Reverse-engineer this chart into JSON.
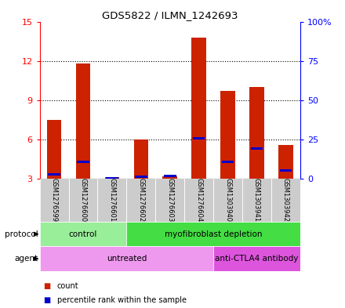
{
  "title": "GDS5822 / ILMN_1242693",
  "samples": [
    "GSM1276599",
    "GSM1276600",
    "GSM1276601",
    "GSM1276602",
    "GSM1276603",
    "GSM1276604",
    "GSM1303940",
    "GSM1303941",
    "GSM1303942"
  ],
  "count_values": [
    7.5,
    11.8,
    3.1,
    6.0,
    3.2,
    13.8,
    9.7,
    10.0,
    5.6
  ],
  "percentile_values": [
    3.3,
    4.3,
    3.05,
    3.15,
    3.2,
    6.1,
    4.3,
    5.3,
    3.6
  ],
  "bar_color": "#cc2200",
  "percentile_color": "#0000cc",
  "ylim_left": [
    3,
    15
  ],
  "ylim_right": [
    0,
    100
  ],
  "yticks_left": [
    3,
    6,
    9,
    12,
    15
  ],
  "yticks_right": [
    0,
    25,
    50,
    75,
    100
  ],
  "ytick_labels_right": [
    "0",
    "25",
    "50",
    "75",
    "100%"
  ],
  "protocol_groups": [
    {
      "label": "control",
      "start": 0,
      "end": 2,
      "color": "#99ee99"
    },
    {
      "label": "myofibroblast depletion",
      "start": 3,
      "end": 8,
      "color": "#44dd44"
    }
  ],
  "agent_groups": [
    {
      "label": "untreated",
      "start": 0,
      "end": 5,
      "color": "#ee99ee"
    },
    {
      "label": "anti-CTLA4 antibody",
      "start": 6,
      "end": 8,
      "color": "#dd55dd"
    }
  ],
  "legend_count_color": "#cc2200",
  "legend_percentile_color": "#0000cc",
  "bar_width": 0.5,
  "background_gray": "#cccccc"
}
